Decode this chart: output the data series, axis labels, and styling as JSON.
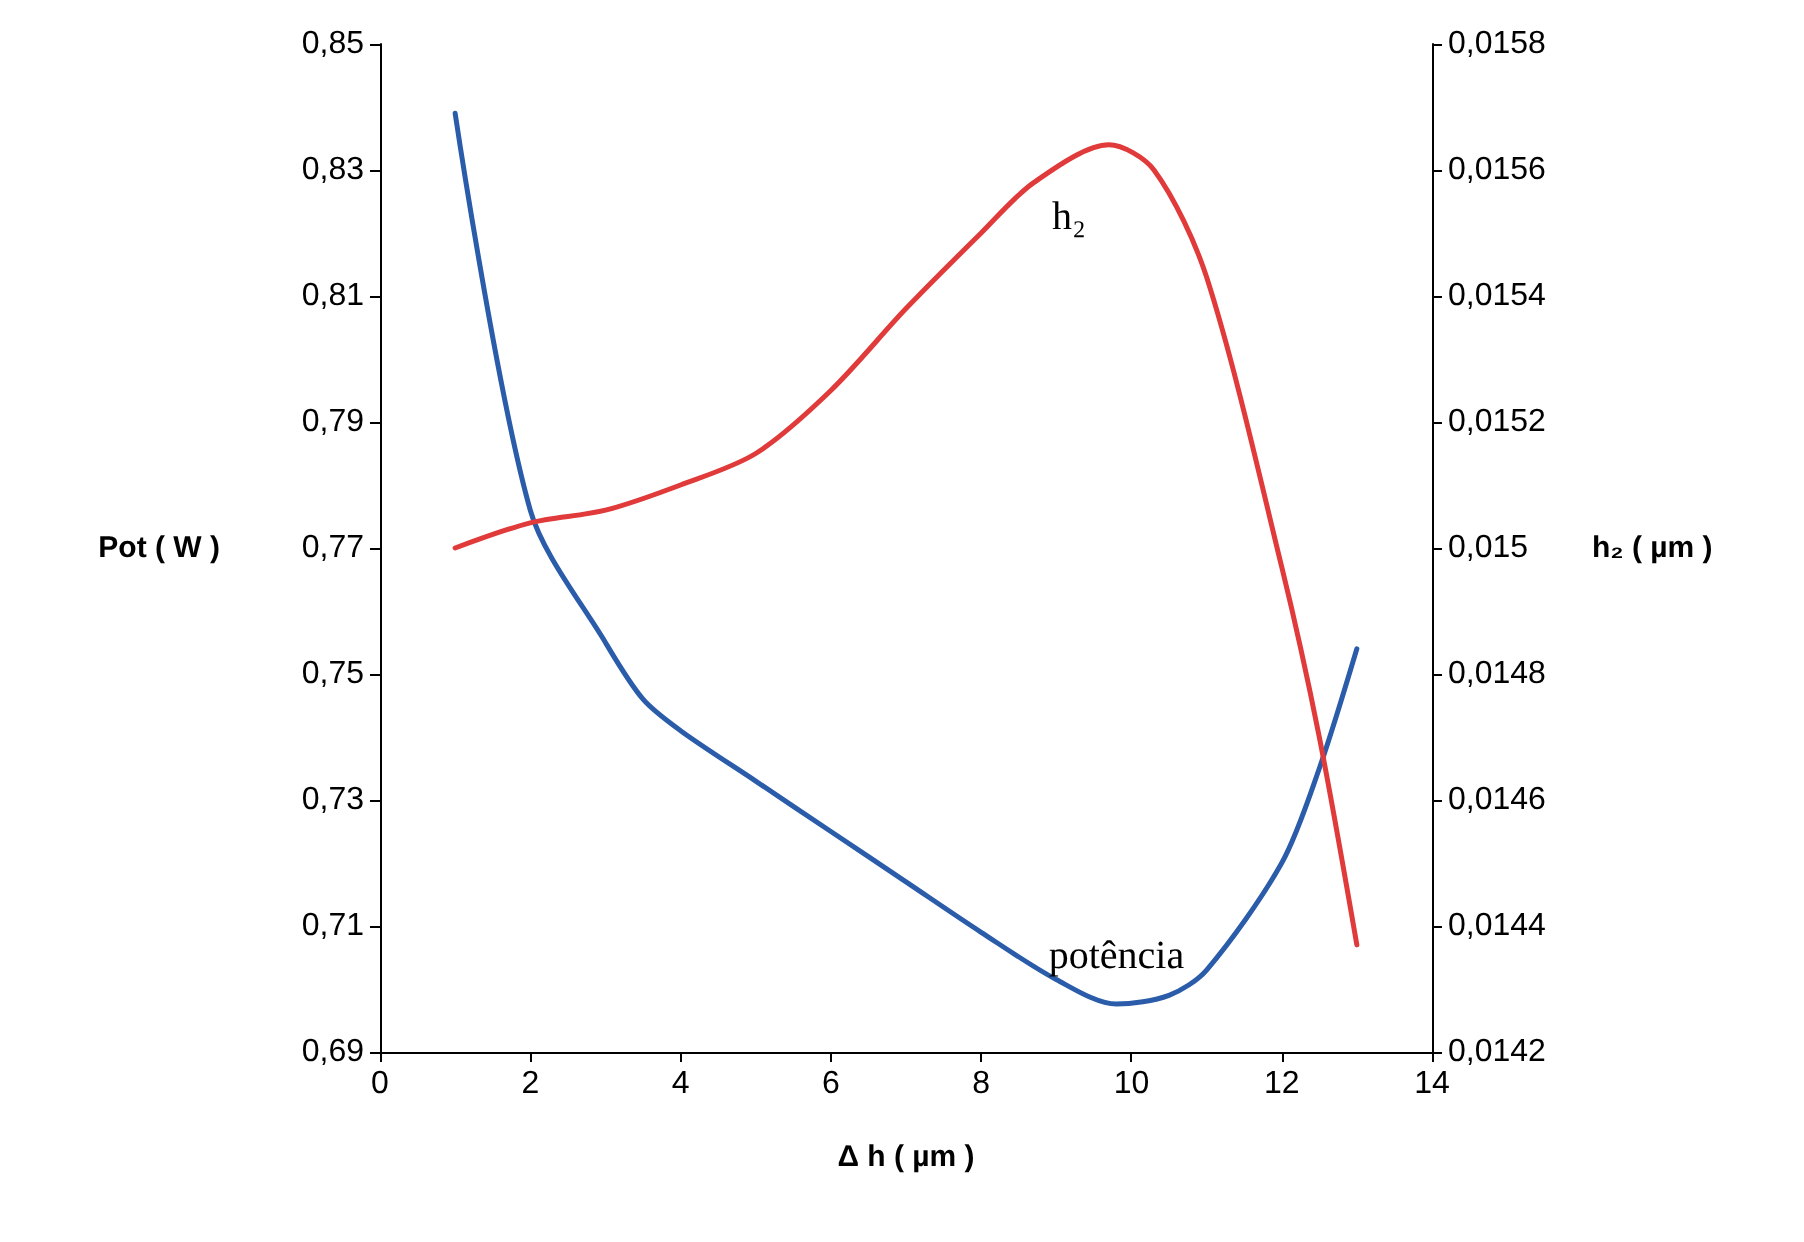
{
  "chart_data": {
    "type": "line",
    "xlabel": "Δ h ( µm )",
    "ylabel": "Pot ( W )",
    "y2label": "h₂ ( µm )",
    "xlim": [
      0,
      14
    ],
    "xticks": [
      0,
      2,
      4,
      6,
      8,
      10,
      12,
      14
    ],
    "ylim": [
      0.69,
      0.85
    ],
    "yticks": [
      {
        "value": 0.69,
        "label": "0,69"
      },
      {
        "value": 0.71,
        "label": "0,71"
      },
      {
        "value": 0.73,
        "label": "0,73"
      },
      {
        "value": 0.75,
        "label": "0,75"
      },
      {
        "value": 0.77,
        "label": "0,77"
      },
      {
        "value": 0.79,
        "label": "0,79"
      },
      {
        "value": 0.81,
        "label": "0,81"
      },
      {
        "value": 0.83,
        "label": "0,83"
      },
      {
        "value": 0.85,
        "label": "0,85"
      }
    ],
    "y2lim": [
      0.0142,
      0.0158
    ],
    "y2ticks": [
      {
        "value": 0.0142,
        "label": "0,0142"
      },
      {
        "value": 0.0144,
        "label": "0,0144"
      },
      {
        "value": 0.0146,
        "label": "0,0146"
      },
      {
        "value": 0.0148,
        "label": "0,0148"
      },
      {
        "value": 0.015,
        "label": "0,015"
      },
      {
        "value": 0.0152,
        "label": "0,0152"
      },
      {
        "value": 0.0154,
        "label": "0,0154"
      },
      {
        "value": 0.0156,
        "label": "0,0156"
      },
      {
        "value": 0.0158,
        "label": "0,0158"
      }
    ],
    "grid": false,
    "legend": false,
    "marker": "none",
    "line_style": "solid",
    "series": [
      {
        "name": "potência",
        "color": "#2a5caa",
        "x": [
          1,
          2,
          3,
          3.5,
          4,
          5,
          6,
          7,
          8,
          9,
          9.8,
          10.5,
          11,
          12,
          12.5,
          13
        ],
        "values": [
          0.839,
          0.776,
          0.755,
          0.746,
          0.741,
          0.733,
          0.725,
          0.717,
          0.709,
          0.7015,
          0.6976,
          0.699,
          0.703,
          0.72,
          0.735,
          0.754
        ]
      },
      {
        "name": "h₂",
        "color": "#e03a3a",
        "axis": "y2",
        "x": [
          1,
          2,
          3,
          4,
          5,
          6,
          7,
          8,
          8.7,
          9.7,
          10.3,
          11,
          12,
          12.5,
          13
        ],
        "values": [
          0.015,
          0.01504,
          0.01506,
          0.0151,
          0.01515,
          0.01525,
          0.01538,
          0.0155,
          0.01558,
          0.01564,
          0.0156,
          0.01543,
          0.01497,
          0.0147,
          0.01437
        ]
      }
    ]
  }
}
